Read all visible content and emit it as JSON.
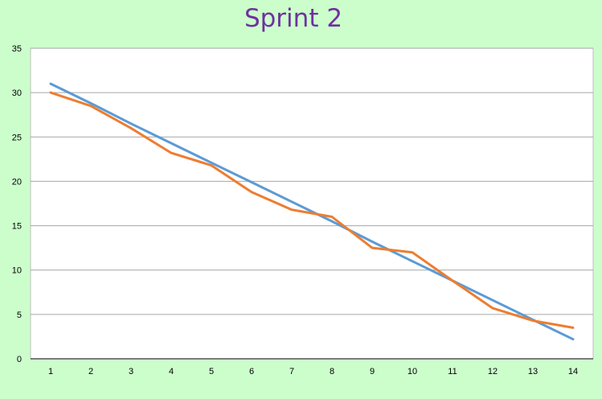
{
  "chart_data": {
    "type": "line",
    "title": "Sprint 2",
    "xlabel": "",
    "ylabel": "",
    "x": [
      1,
      2,
      3,
      4,
      5,
      6,
      7,
      8,
      9,
      10,
      11,
      12,
      13,
      14
    ],
    "ylim": [
      0,
      35
    ],
    "yticks": [
      0,
      5,
      10,
      15,
      20,
      25,
      30,
      35
    ],
    "grid": true,
    "series": [
      {
        "color": "#5b9bd5",
        "values": [
          31,
          28.8,
          26.5,
          24.3,
          22.1,
          19.9,
          17.7,
          15.5,
          13.2,
          11.0,
          8.8,
          6.6,
          4.4,
          2.2
        ]
      },
      {
        "color": "#ed7d31",
        "values": [
          30,
          28.5,
          26,
          23.2,
          21.8,
          18.8,
          16.8,
          16,
          12.5,
          12,
          8.8,
          5.7,
          4.3,
          3.5
        ]
      }
    ]
  },
  "colors": {
    "background": "#ccfecc",
    "title": "#7030a0"
  }
}
